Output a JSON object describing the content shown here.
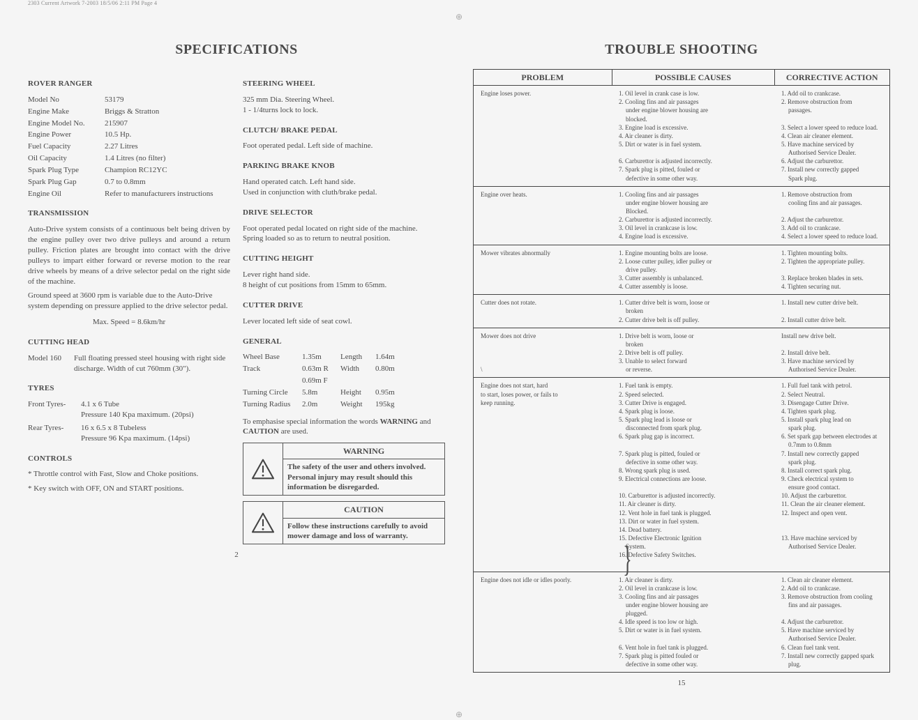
{
  "header": "2303 Current Artwork 7-2003  18/5/06  2:11 PM  Page 4",
  "left": {
    "title": "SPECIFICATIONS",
    "sections": {
      "rover_ranger": {
        "heading": "ROVER RANGER",
        "rows": [
          [
            "Model No",
            "53179"
          ],
          [
            "Engine Make",
            "Briggs & Stratton"
          ],
          [
            "Engine Model No.",
            "215907"
          ],
          [
            "Engine Power",
            "10.5 Hp."
          ],
          [
            "Fuel Capacity",
            "2.27 Litres"
          ],
          [
            "Oil Capacity",
            "1.4 Litres (no filter)"
          ],
          [
            "Spark Plug Type",
            "Champion RC12YC"
          ],
          [
            "Spark Plug Gap",
            "0.7 to 0.8mm"
          ],
          [
            "Engine Oil",
            "Refer to manufacturers instructions"
          ]
        ]
      },
      "transmission": {
        "heading": "TRANSMISSION",
        "para1": "Auto-Drive system consists of a continuous belt being driven by the engine pulley over two drive pulleys and around a return pulley. Friction plates are brought into contact with the drive pulleys to impart either forward or reverse motion to the rear drive wheels by means of a drive selector pedal on the right side of the machine.",
        "para2": "Ground speed at 3600 rpm is variable due to the Auto-Drive system depending on pressure applied to the drive selector pedal.",
        "maxspeed": "Max. Speed = 8.6km/hr"
      },
      "cutting_head": {
        "heading": "CUTTING HEAD",
        "label": "Model 160",
        "text": "Full floating pressed steel housing with right side discharge. Width of cut 760mm (30\")."
      },
      "tyres": {
        "heading": "TYRES",
        "front_label": "Front Tyres-",
        "front_l1": "4.1 x 6 Tube",
        "front_l2": "Pressure 140 Kpa maximum. (20psi)",
        "rear_label": "Rear Tyres-",
        "rear_l1": "16 x 6.5 x 8 Tubeless",
        "rear_l2": "Pressure 96 Kpa maximum. (14psi)"
      },
      "controls": {
        "heading": "CONTROLS",
        "l1": "* Throttle control with Fast, Slow and Choke positions.",
        "l2": "* Key switch with OFF, ON and START positions."
      },
      "steering": {
        "heading": "STEERING WHEEL",
        "l1": "325 mm Dia. Steering Wheel.",
        "l2": "1 - 1/4turns lock to lock."
      },
      "clutch": {
        "heading": "CLUTCH/ BRAKE PEDAL",
        "l1": "Foot operated pedal. Left side of machine."
      },
      "parking": {
        "heading": "PARKING BRAKE KNOB",
        "l1": "Hand operated catch. Left hand side.",
        "l2": "Used in conjunction with cluth/brake pedal."
      },
      "drive_sel": {
        "heading": "DRIVE SELECTOR",
        "l1": "Foot operated pedal located on right side of the machine.",
        "l2": "Spring loaded so as to return to neutral position."
      },
      "cut_height": {
        "heading": "CUTTING HEIGHT",
        "l1": "Lever right hand side.",
        "l2": "8 height of cut positions from 15mm to 65mm."
      },
      "cutter_drive": {
        "heading": "CUTTER DRIVE",
        "l1": "Lever located left side of seat cowl."
      },
      "general": {
        "heading": "GENERAL",
        "rows": [
          [
            "Wheel Base",
            "1.35m",
            "Length",
            "1.64m"
          ],
          [
            "Track",
            "0.63m R",
            "Width",
            "0.80m"
          ],
          [
            "",
            "0.69m F",
            "",
            ""
          ],
          [
            "Turning Circle",
            "5.8m",
            "Height",
            "0.95m"
          ],
          [
            "Turning Radius",
            "2.0m",
            "Weight",
            "195kg"
          ]
        ],
        "note_pre": "To emphasise special information the words ",
        "note_w": "WARNING",
        "note_mid": " and ",
        "note_c": "CAUTION",
        "note_post": " are used."
      },
      "warning": {
        "title": "WARNING",
        "text": "The safety of the user and others involved. Personal injury may result should this information be disregarded."
      },
      "caution": {
        "title": "CAUTION",
        "text": "Follow these instructions carefully to avoid mower damage and loss of warranty."
      }
    },
    "pagenum": "2"
  },
  "right": {
    "title": "TROUBLE SHOOTING",
    "head": {
      "c1": "PROBLEM",
      "c2": "POSSIBLE CAUSES",
      "c3": "CORRECTIVE ACTION"
    },
    "rows": [
      {
        "problem": "Engine loses power.",
        "causes": [
          "1. Oil level in crank case is low.",
          "2. Cooling fins and air passages",
          "   under engine blower housing are",
          "   blocked.",
          "3. Engine load is excessive.",
          "4. Air cleaner is dirty.",
          "5. Dirt or water is in fuel system.",
          "",
          "6. Carburettor is adjusted incorrectly.",
          "7. Spark plug is pitted, fouled or",
          "   defective in some other way."
        ],
        "actions": [
          "1. Add oil to crankcase.",
          "2. Remove obstruction from",
          "   passages.",
          "",
          "3. Select a lower speed to reduce load.",
          "4. Clean air cleaner element.",
          "5. Have machine serviced by",
          "   Authorised Service Dealer.",
          "6. Adjust the carburettor.",
          "7. Install new correctly gapped",
          "   Spark plug."
        ]
      },
      {
        "problem": "Engine over heats.",
        "causes": [
          "1. Cooling fins and air passages",
          "   under engine blower housing are",
          "   Blocked.",
          "2. Carburettor is adjusted incorrectly.",
          "3. Oil level in crankcase is low.",
          "4. Engine load is excessive."
        ],
        "actions": [
          "1. Remove obstruction from",
          "   cooling fins and air passages.",
          "",
          "2. Adjust the carburettor.",
          "3. Add oil to crankcase.",
          "4. Select a lower speed to reduce load."
        ]
      },
      {
        "problem": "Mower vibrates abnormally",
        "causes": [
          "1. Engine mounting bolts are loose.",
          "2. Loose cutter pulley, idler pulley or",
          "   drive pulley.",
          "3. Cutter assembly is unbalanced.",
          "4. Cutter assembly is loose."
        ],
        "actions": [
          "1. Tighten mounting bolts.",
          "2. Tighten the appropriate pulley.",
          "",
          "3. Replace broken blades in sets.",
          "4. Tighten securing nut."
        ]
      },
      {
        "problem": "Cutter does not rotate.",
        "causes": [
          "1. Cutter drive belt is worn, loose or",
          "   broken",
          "2. Cutter drive belt is off pulley."
        ],
        "actions": [
          "1. Install new cutter drive belt.",
          "",
          "2. Install cutter drive belt."
        ]
      },
      {
        "problem": "Mower does not drive",
        "problem_extra": "\\",
        "causes": [
          "1. Drive belt is worn, loose or",
          "   broken",
          "2. Drive belt is off pulley.",
          "3. Unable to select forward",
          "   or reverse."
        ],
        "actions": [
          "Install new drive belt.",
          "",
          "2. Install drive belt.",
          "3. Have machine serviced by",
          "   Authorised Service Dealer."
        ]
      },
      {
        "problem": "Engine does not start, hard",
        "problem_l2": "to start, loses power, or fails to",
        "problem_l3": "keep running.",
        "causes": [
          "1. Fuel tank is empty.",
          "2. Speed selected.",
          "3. Cutter Drive is engaged.",
          "4. Spark plug is loose.",
          "5. Spark plug lead is loose or",
          "   disconnected from spark plug.",
          "6. Spark plug gap is incorrect.",
          "",
          "7. Spark plug is pitted, fouled or",
          "   defective in some other way.",
          "8. Wrong spark plug is used.",
          "9. Electrical connections are loose.",
          "",
          "10. Carburettor is adjusted incorrectly.",
          "11. Air cleaner is dirty.",
          "12. Vent hole in fuel tank is plugged.",
          "13. Dirt or water in fuel system.",
          "14. Dead battery.",
          "15. Defective Electronic Ignition",
          "    System.",
          "16. Defective Safety Switches."
        ],
        "actions": [
          "1. Full fuel tank with petrol.",
          "2. Select Neutral.",
          "3. Disengage Cutter Drive.",
          "4. Tighten spark plug.",
          "5. Install spark plug lead on",
          "   spark plug.",
          "6. Set spark gap between electrodes at",
          "   0.7mm to 0.8mm",
          "7. Install new correctly gapped",
          "   spark plug.",
          "8. Install correct spark plug.",
          "9. Check electrical system to",
          "   ensure good contact.",
          "10. Adjust the carburettor.",
          "11. Clean the air cleaner element.",
          "12. Inspect and open vent.",
          "",
          "",
          "13. Have machine serviced by",
          "    Authorised Service Dealer."
        ],
        "brace": true
      },
      {
        "problem": "Engine does not idle or idles poorly.",
        "causes": [
          "1. Air cleaner is dirty.",
          "2. Oil level in crankcase is low.",
          "3. Cooling fins and air passages",
          "   under engine blower housing are",
          "   plugged.",
          "4. Idle speed is too low or high.",
          "5. Dirt or water is in fuel system.",
          "",
          "6. Vent hole in fuel tank is plugged.",
          "7. Spark plug is pitted fouled or",
          "   defective in some other way."
        ],
        "actions": [
          "1. Clean air cleaner element.",
          "2. Add oil to crankcase.",
          "3. Remove obstruction from cooling",
          "   fins and air passages.",
          "",
          "4. Adjust the carburettor.",
          "5. Have machine serviced by",
          "   Authorised Service Dealer.",
          "6. Clean fuel tank vent.",
          "7. Install new correctly gapped spark",
          "   plug."
        ]
      }
    ],
    "pagenum": "15"
  }
}
